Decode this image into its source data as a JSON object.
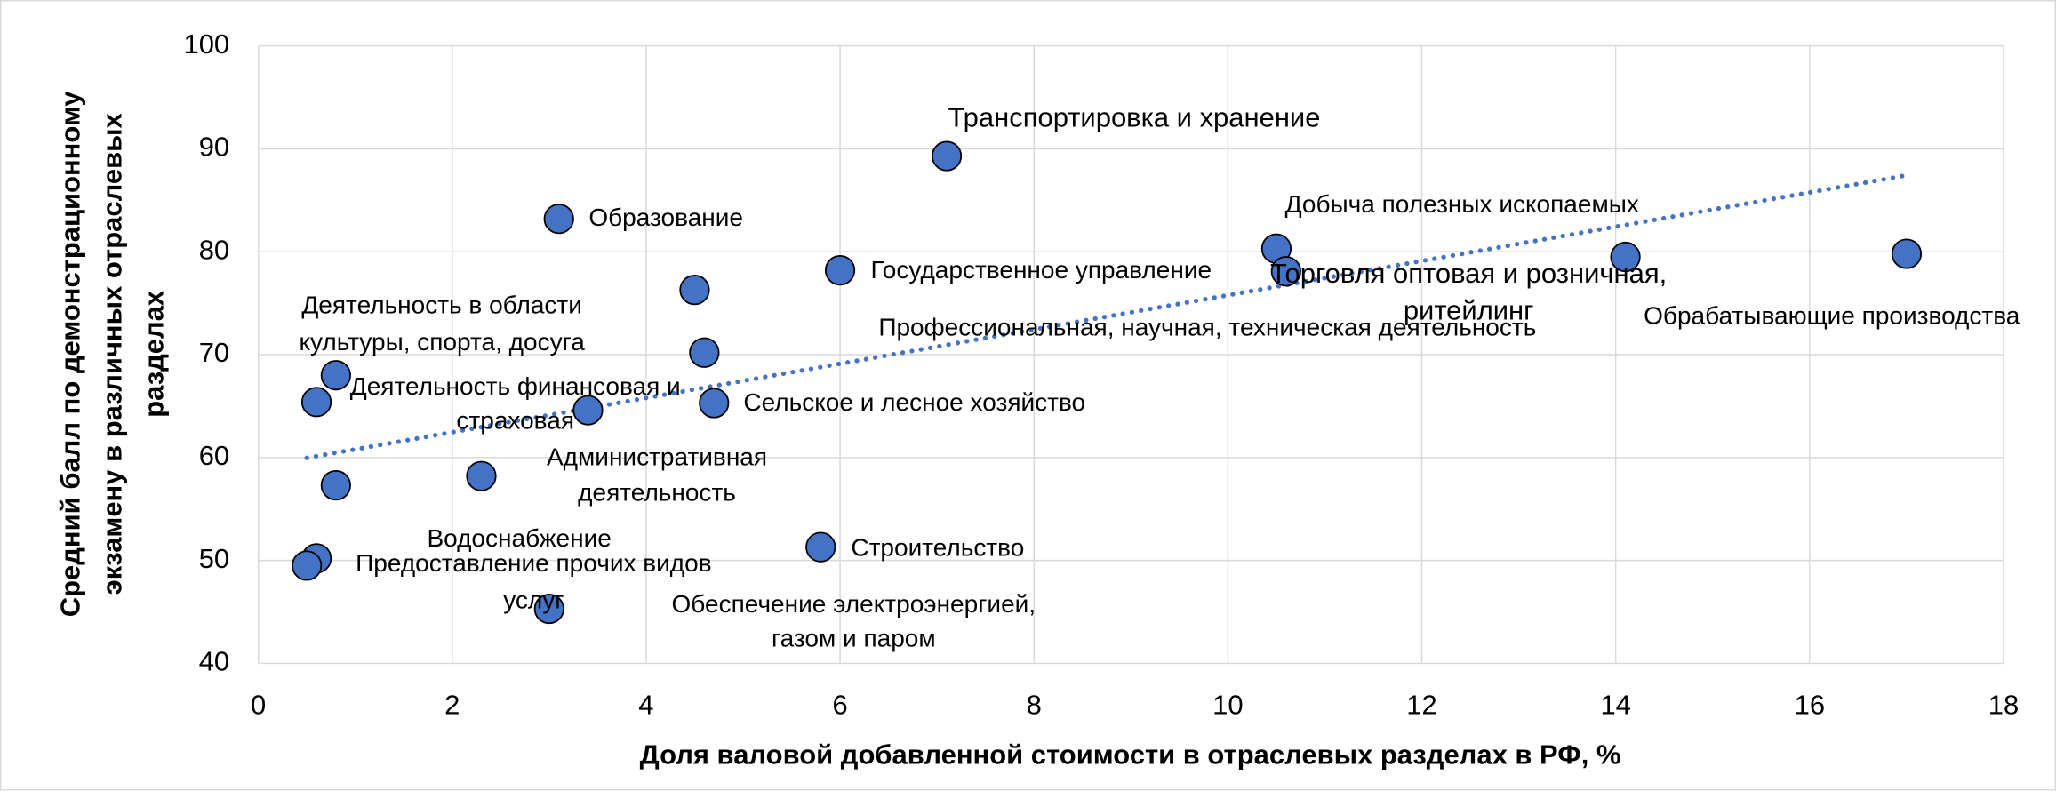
{
  "chart_data": {
    "type": "scatter",
    "xlabel": "Доля валовой добавленной стоимости в отраслевых разделах в РФ, %",
    "ylabel": [
      "Средний балл по демонстрационному",
      "экзамену в различных отраслевых",
      "разделах"
    ],
    "x": [
      7.1,
      3.1,
      6.0,
      10.5,
      10.6,
      17.0,
      14.1,
      4.6,
      0.8,
      0.6,
      3.4,
      4.7,
      2.3,
      0.8,
      0.6,
      0.5,
      3.0,
      5.8,
      4.5
    ],
    "y": [
      89.3,
      83.2,
      78.2,
      80.3,
      78.1,
      79.8,
      79.5,
      70.2,
      68.0,
      65.4,
      64.6,
      65.3,
      58.2,
      57.3,
      50.2,
      49.5,
      45.3,
      51.3,
      76.3
    ],
    "labels": [
      "Транспортировка и хранение",
      "Образование",
      "Государственное управление",
      "Добыча полезных ископаемых",
      [
        "Торговля оптовая и розничная,",
        "ритейлинг"
      ],
      "Обрабатывающие производства",
      null,
      "Профессиональная, научная, техническая деятельность",
      [
        "Деятельность в области",
        "культуры, спорта, досуга"
      ],
      null,
      [
        "Деятельность финансовая и",
        "страховая"
      ],
      "Сельское и лесное хозяйство",
      [
        "Административная",
        "деятельность"
      ],
      null,
      "Водоснабжение",
      [
        "Предоставление прочих видов",
        "услуг"
      ],
      [
        "Обеспечение электроэнергией,",
        "газом и паром"
      ],
      "Строительство",
      null
    ],
    "color": "#4472c4",
    "trendline": true,
    "xlim": [
      0,
      18
    ],
    "xticks": [
      0,
      2,
      4,
      6,
      8,
      10,
      12,
      14,
      16,
      18
    ],
    "ylim": [
      40,
      100
    ],
    "yticks": [
      40,
      50,
      60,
      70,
      80,
      90,
      100
    ],
    "grid": true
  }
}
